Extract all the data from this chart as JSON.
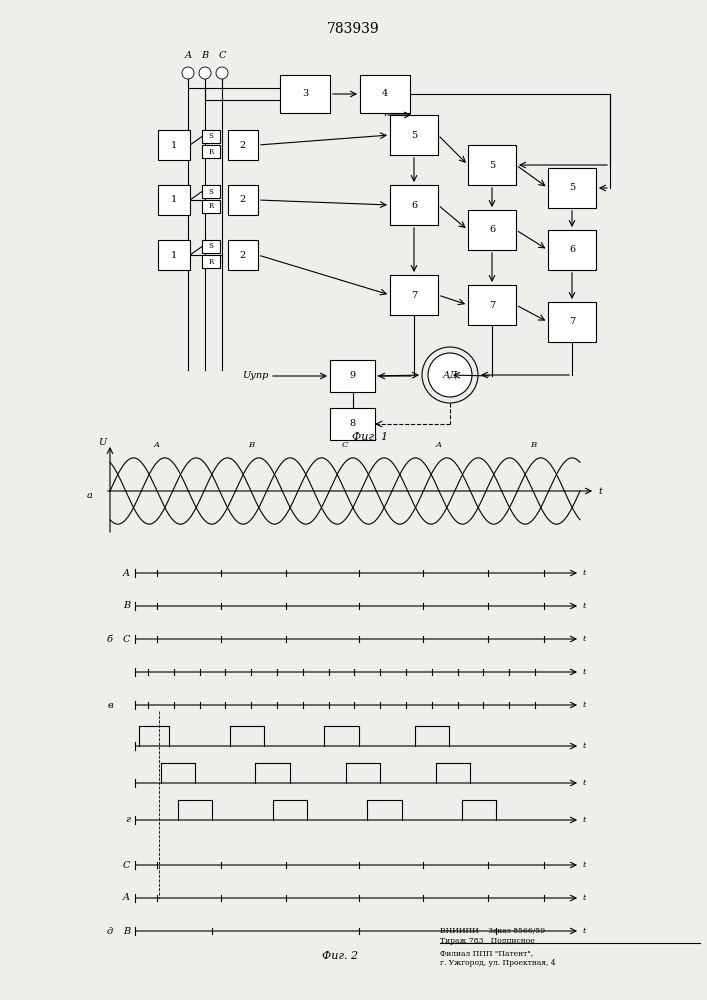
{
  "title": "783939",
  "bg": "#f0eeea",
  "fig1_label": "Фиг. 1",
  "fig2_label": "Фиг. 2",
  "footer_line1": "ВНИИПИ    Заказ 8566/59",
  "footer_line2": "Тираж 783   Подписное",
  "footer_line3": "Филиал ППП \"Патент\",",
  "footer_line4": "г. Ужгород, ул. Проектная, 4"
}
